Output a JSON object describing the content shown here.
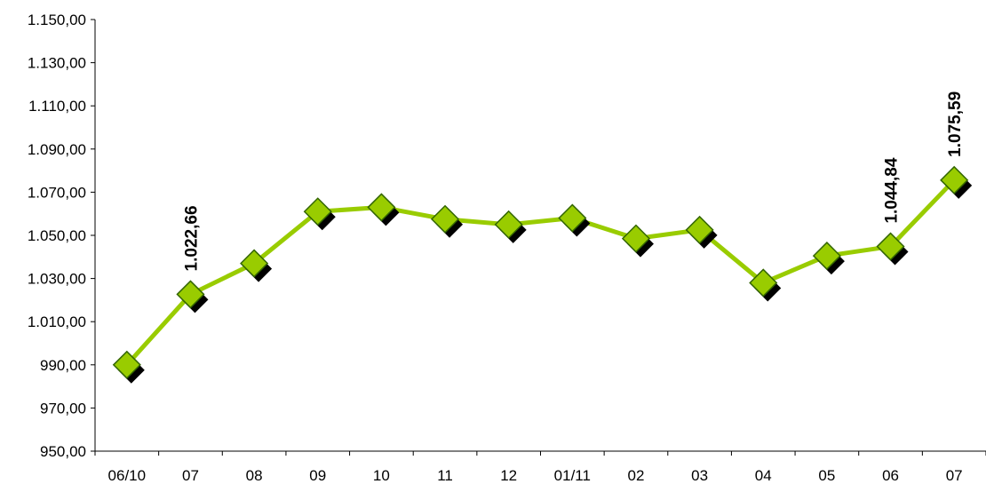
{
  "chart_data": {
    "type": "line",
    "title": "",
    "xlabel": "",
    "ylabel": "",
    "categories": [
      "06/10",
      "07",
      "08",
      "09",
      "10",
      "11",
      "12",
      "01/11",
      "02",
      "03",
      "04",
      "05",
      "06",
      "07"
    ],
    "series": [
      {
        "values": [
          990.0,
          1022.66,
          1037.0,
          1061.0,
          1063.0,
          1057.5,
          1055.0,
          1058.0,
          1048.5,
          1052.5,
          1028.0,
          1040.5,
          1044.84,
          1075.59
        ],
        "color": "#99cc00",
        "marker": "diamond",
        "marker_fill": "#99cc00",
        "marker_edge": "#336600",
        "marker_shadow": "#000000"
      }
    ],
    "data_labels": [
      {
        "index": 1,
        "text": "1.022,66"
      },
      {
        "index": 12,
        "text": "1.044,84"
      },
      {
        "index": 13,
        "text": "1.075,59"
      }
    ],
    "yticks": [
      950,
      970,
      990,
      1010,
      1030,
      1050,
      1070,
      1090,
      1110,
      1130,
      1150
    ],
    "ytick_labels": [
      "950,00",
      "970,00",
      "990,00",
      "1.010,00",
      "1.030,00",
      "1.050,00",
      "1.070,00",
      "1.090,00",
      "1.110,00",
      "1.130,00",
      "1.150,00"
    ],
    "ylim": [
      950,
      1150
    ],
    "grid": false,
    "legend": "none"
  }
}
